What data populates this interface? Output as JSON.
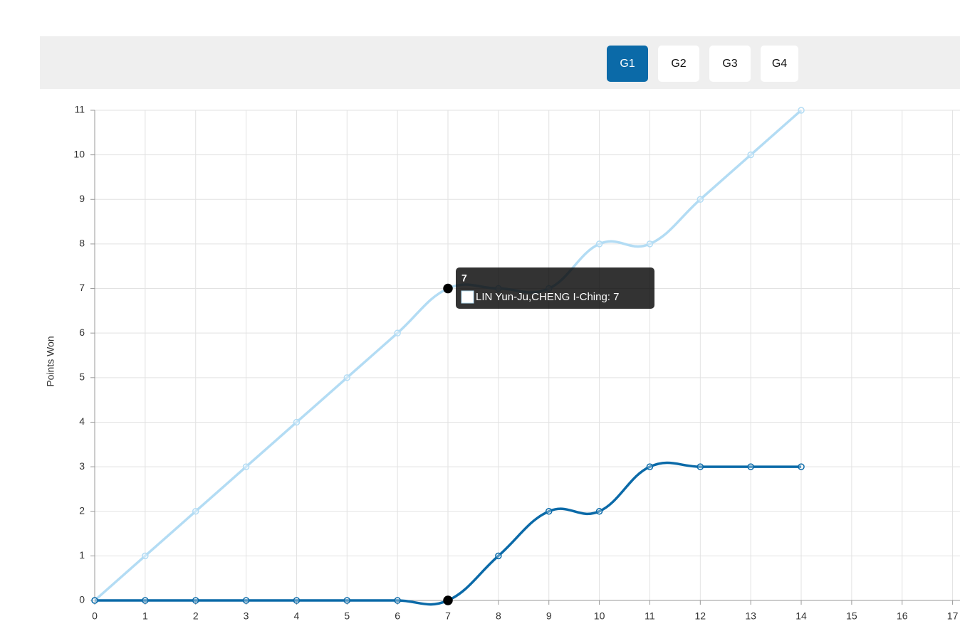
{
  "buttons": [
    "G1",
    "G2",
    "G3",
    "G4"
  ],
  "active_button": "G1",
  "chart_data": {
    "type": "line",
    "y_label": "Points Won",
    "x": [
      0,
      1,
      2,
      3,
      4,
      5,
      6,
      7,
      8,
      9,
      10,
      11,
      12,
      13,
      14
    ],
    "series": [
      {
        "color": "#b3dcf4",
        "values": [
          0,
          1,
          2,
          3,
          4,
          5,
          6,
          7,
          7,
          7,
          8,
          8,
          9,
          10,
          11
        ]
      },
      {
        "color": "#0b6aa8",
        "values": [
          0,
          0,
          0,
          0,
          0,
          0,
          0,
          0,
          1,
          2,
          2,
          3,
          3,
          3,
          3
        ]
      }
    ],
    "xlim": [
      0,
      17
    ],
    "xticks": [
      0,
      1,
      2,
      3,
      4,
      5,
      6,
      7,
      8,
      9,
      10,
      11,
      12,
      13,
      14,
      15,
      16,
      17
    ],
    "ylim": [
      0,
      11
    ],
    "yticks": [
      0,
      1,
      2,
      3,
      4,
      5,
      6,
      7,
      8,
      9,
      10,
      11
    ],
    "grid": true,
    "tooltip": {
      "title": 7,
      "label": "LIN Yun-Ju,CHENG I-Ching: 7"
    }
  }
}
